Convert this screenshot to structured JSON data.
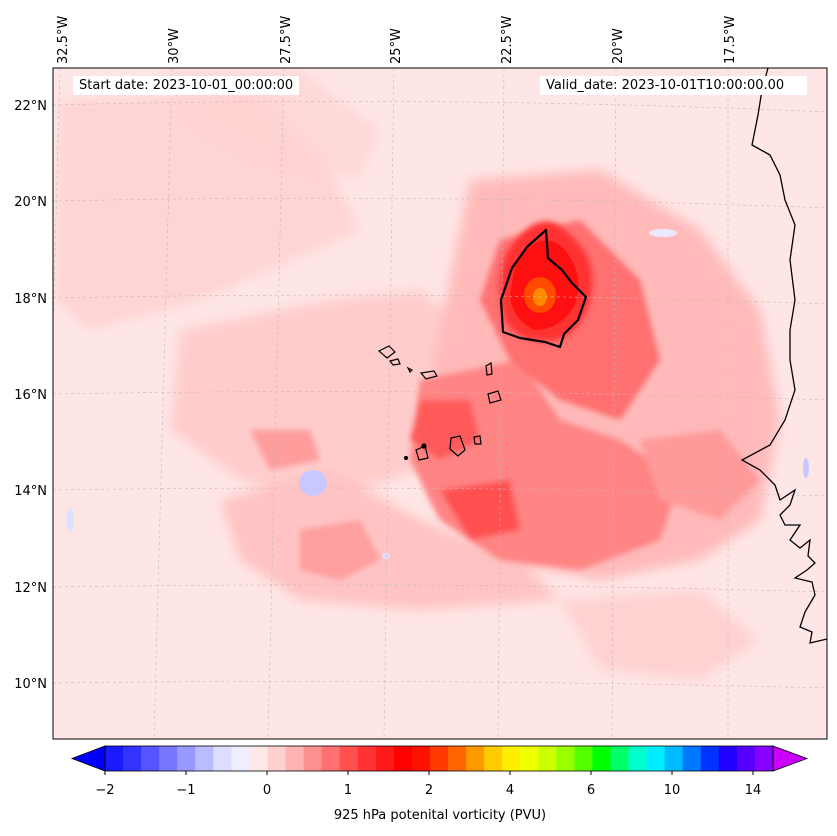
{
  "header": {
    "start_date": "Start date: 2023-10-01_00:00:00",
    "valid_date": "Valid_date: 2023-10-01T10:00:00.00"
  },
  "longitude_labels": [
    "32.5°W",
    "30°W",
    "27.5°W",
    "25°W",
    "22.5°W",
    "20°W",
    "17.5°W"
  ],
  "latitude_labels": [
    "22°N",
    "20°N",
    "18°N",
    "16°N",
    "14°N",
    "12°N",
    "10°N"
  ],
  "colorbar": {
    "label": "925 hPa potenital vorticity (PVU)",
    "tick_labels": [
      "−2",
      "−1",
      "0",
      "1",
      "2",
      "4",
      "6",
      "10",
      "14"
    ],
    "extend": "both",
    "colors": [
      "#1a1aff",
      "#3333ff",
      "#5555ff",
      "#7777ff",
      "#9999ff",
      "#bbbbff",
      "#dddeff",
      "#eeeeff",
      "#ffe8e8",
      "#ffd0d0",
      "#ffb3b3",
      "#ff9090",
      "#ff7070",
      "#ff5050",
      "#ff3333",
      "#ff1a1a",
      "#ff0000",
      "#ff1100",
      "#ff3a00",
      "#ff6600",
      "#ff9900",
      "#ffcc00",
      "#ffee00",
      "#eeff00",
      "#ccff00",
      "#99ff00",
      "#55ff00",
      "#00ff00",
      "#00ff66",
      "#00ffcc",
      "#00eeff",
      "#00bbff",
      "#0077ff",
      "#0033ff",
      "#2200ff",
      "#5500ff",
      "#8800ff"
    ],
    "under_color": "#0000ff",
    "over_color": "#cc00ff"
  },
  "map": {
    "background": "#ffe6e6",
    "coastline_color": "#000000",
    "contour_color": "#000000"
  }
}
